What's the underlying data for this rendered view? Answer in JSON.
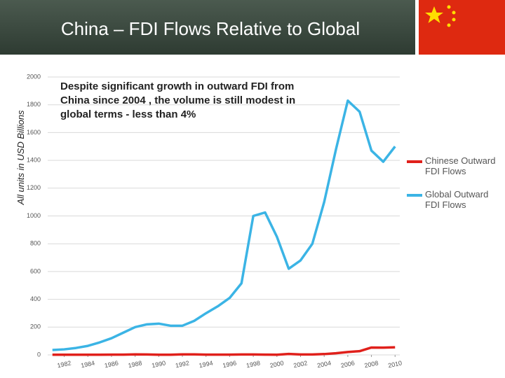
{
  "chart_data": {
    "type": "line",
    "title": "China – FDI Flows Relative to Global",
    "y_axis_label": "All units in USD Billions",
    "annotation": [
      "Despite significant growth in outward FDI from",
      "China since 2004 ,  the volume is still modest in",
      "global terms - less than 4%"
    ],
    "x": [
      1981,
      1982,
      1983,
      1984,
      1985,
      1986,
      1987,
      1988,
      1989,
      1990,
      1991,
      1992,
      1993,
      1994,
      1995,
      1996,
      1997,
      1998,
      1999,
      2000,
      2001,
      2002,
      2003,
      2004,
      2005,
      2006,
      2007,
      2008,
      2009,
      2010
    ],
    "series": [
      {
        "name": "Chinese Outward FDI Flows",
        "color": "#e0201b",
        "values": [
          1,
          1,
          1,
          1,
          1,
          2,
          2,
          4,
          3,
          1,
          1,
          4,
          4,
          2,
          2,
          2,
          3,
          3,
          2,
          1,
          7,
          3,
          3,
          6,
          12,
          21,
          27,
          53,
          52,
          55
        ]
      },
      {
        "name": "Global Outward FDI Flows",
        "color": "#3bb4e5",
        "values": [
          35,
          40,
          50,
          65,
          90,
          120,
          160,
          200,
          220,
          225,
          210,
          210,
          245,
          300,
          350,
          410,
          515,
          1000,
          1025,
          850,
          620,
          680,
          800,
          1100,
          1480,
          1830,
          1750,
          1470,
          1390,
          1500
        ]
      }
    ],
    "xlim": [
      1980.6,
      2010.4
    ],
    "xticks": [
      1982,
      1984,
      1986,
      1988,
      1990,
      1992,
      1994,
      1996,
      1998,
      2000,
      2002,
      2004,
      2006,
      2008,
      2010
    ],
    "ylim": [
      0,
      2000
    ],
    "yticks": [
      0,
      200,
      400,
      600,
      800,
      1000,
      1200,
      1400,
      1600,
      1800,
      2000
    ],
    "grid": true,
    "legend": "right"
  }
}
